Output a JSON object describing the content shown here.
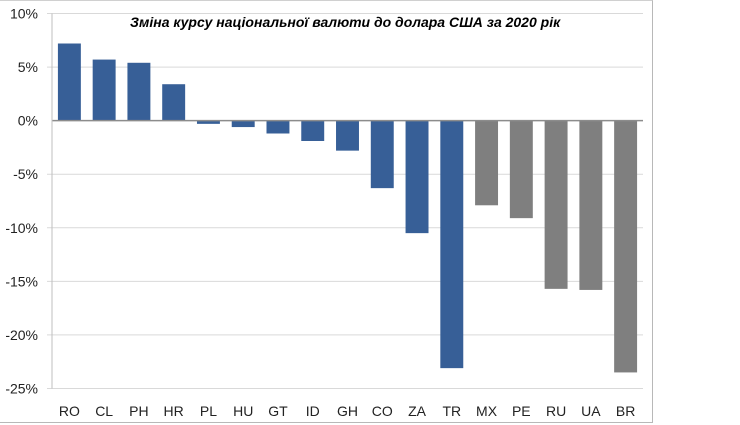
{
  "chart_data": {
    "type": "bar",
    "title": "Зміна курсу національної валюти до долара США за 2020 рік",
    "xlabel": "",
    "ylabel": "",
    "ylim": [
      -25,
      10
    ],
    "yticks": [
      10,
      5,
      0,
      -5,
      -10,
      -15,
      -20,
      -25
    ],
    "ytick_labels": [
      "10%",
      "5%",
      "0%",
      "-5%",
      "-10%",
      "-15%",
      "-20%",
      "-25%"
    ],
    "grid": true,
    "legend": "none",
    "categories": [
      "RO",
      "CL",
      "PH",
      "HR",
      "PL",
      "HU",
      "GT",
      "ID",
      "GH",
      "CO",
      "ZA",
      "TR",
      "MX",
      "PE",
      "RU",
      "UA",
      "BR"
    ],
    "values": [
      7.2,
      5.7,
      5.4,
      3.4,
      -0.3,
      -0.6,
      -1.2,
      -1.9,
      -2.8,
      -6.3,
      -10.5,
      -23.1,
      -7.9,
      -9.1,
      -15.7,
      -15.8,
      -23.5
    ],
    "bar_colors": [
      "#375F97",
      "#375F97",
      "#375F97",
      "#375F97",
      "#375F97",
      "#375F97",
      "#375F97",
      "#375F97",
      "#375F97",
      "#375F97",
      "#375F97",
      "#375F97",
      "#7F7F7F",
      "#7F7F7F",
      "#7F7F7F",
      "#7F7F7F",
      "#7F7F7F"
    ],
    "unit": "%"
  }
}
